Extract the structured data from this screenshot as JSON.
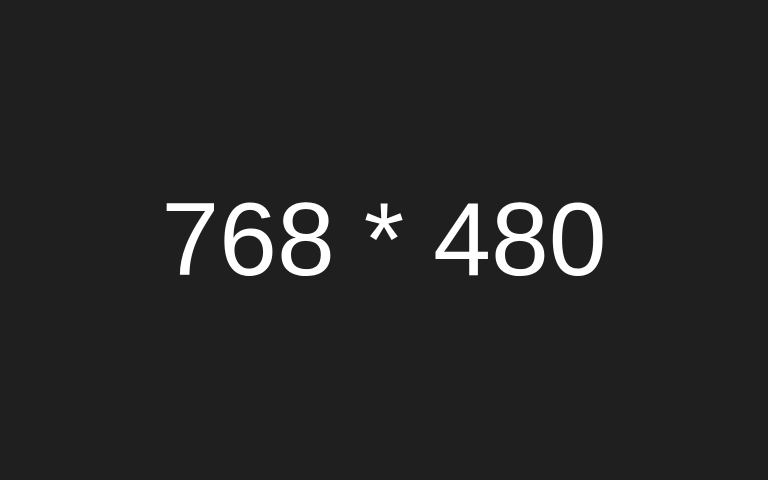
{
  "background_color": "#1f1f1f",
  "text_color": "#ffffff",
  "label": "768 * 480"
}
